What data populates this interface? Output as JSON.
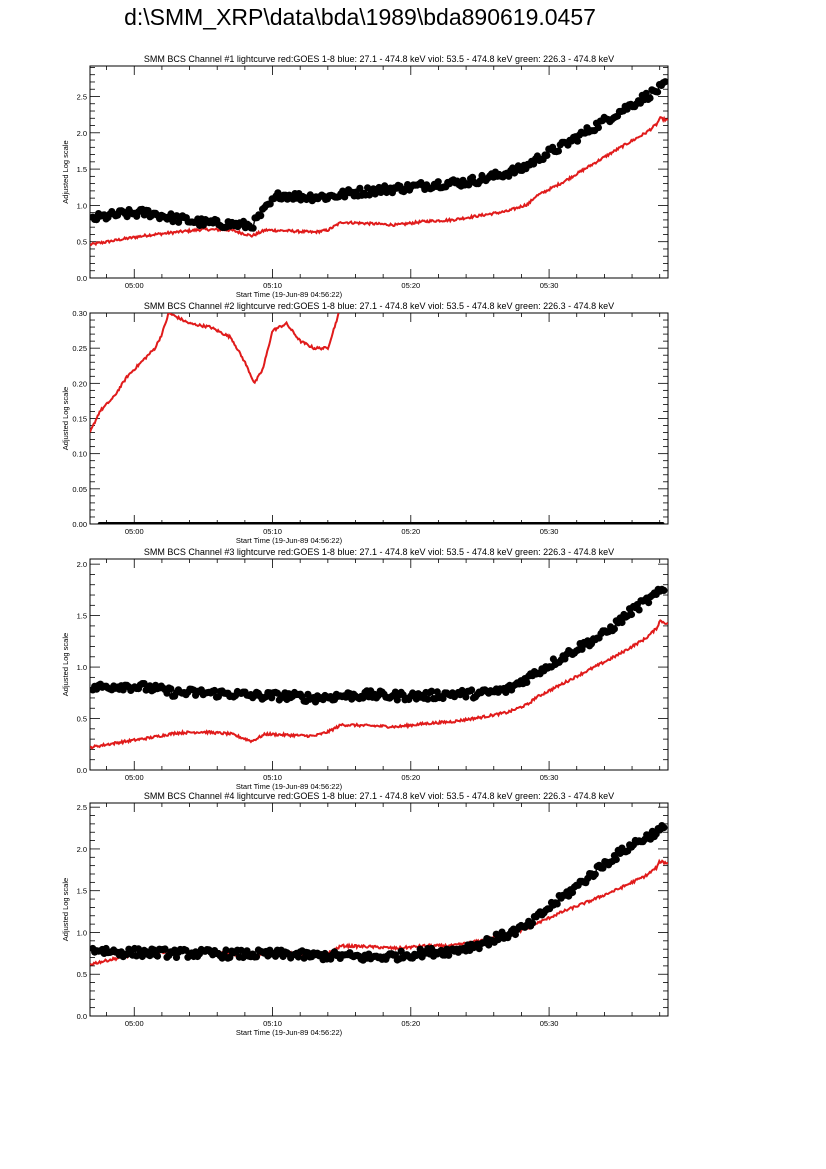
{
  "page": {
    "title": "d:\\SMM_XRP\\data\\bda\\1989\\bda890619.0457"
  },
  "colors": {
    "red": "#e01b1b",
    "black": "#000000"
  },
  "chart_data": [
    {
      "type": "scatter",
      "title": "SMM BCS Channel #1 lightcurve  red:GOES 1-8  blue: 27.1 - 474.8 keV  viol: 53.5 - 474.8 keV  green: 226.3 - 474.8 keV",
      "xlabel": "Start Time (19-Jun-89 04:56:22)",
      "ylabel": "Adjusted Log scale",
      "xlim": [
        -3.2,
        38.6
      ],
      "ylim": [
        0,
        2.92
      ],
      "x_ticks": [
        0,
        10,
        20,
        30
      ],
      "x_tick_labels": [
        "05:00",
        "05:10",
        "05:20",
        "05:30"
      ],
      "y_ticks": [
        0,
        0.5,
        1.0,
        1.5,
        2.0,
        2.5
      ],
      "y_tick_labels": [
        "0.0",
        "0.5",
        "1.0",
        "1.5",
        "2.0",
        "2.5"
      ],
      "series": [
        {
          "color": "#e01b1b",
          "style": "line",
          "x": [
            -3.2,
            -1,
            1,
            3,
            5,
            7,
            8.5,
            9.5,
            11,
            13,
            14,
            15,
            17,
            19,
            21,
            23,
            25,
            27,
            28.5,
            29,
            31,
            33,
            35,
            37,
            37.8,
            38,
            38.6
          ],
          "y": [
            0.46,
            0.53,
            0.59,
            0.63,
            0.67,
            0.66,
            0.58,
            0.66,
            0.65,
            0.63,
            0.66,
            0.77,
            0.75,
            0.73,
            0.78,
            0.8,
            0.86,
            0.92,
            1.02,
            1.12,
            1.32,
            1.55,
            1.78,
            2.0,
            2.12,
            2.2,
            2.17
          ]
        },
        {
          "color": "#000000",
          "style": "markers",
          "x": [
            -3,
            -1,
            1,
            3,
            5,
            7,
            8.5,
            9.5,
            10.5,
            12,
            14,
            16,
            18,
            20,
            22,
            24,
            26,
            28,
            29.5,
            31,
            33,
            35,
            37,
            38.4
          ],
          "y": [
            0.82,
            0.88,
            0.9,
            0.82,
            0.76,
            0.74,
            0.72,
            0.95,
            1.15,
            1.12,
            1.12,
            1.18,
            1.22,
            1.25,
            1.3,
            1.32,
            1.4,
            1.5,
            1.68,
            1.82,
            2.05,
            2.28,
            2.5,
            2.65
          ]
        }
      ]
    },
    {
      "type": "scatter",
      "title": "SMM BCS Channel #2 lightcurve  red:GOES 1-8  blue: 27.1 - 474.8 keV  viol: 53.5 - 474.8 keV  green: 226.3 - 474.8 keV",
      "xlabel": "Start Time (19-Jun-89 04:56:22)",
      "ylabel": "Adjusted Log scale",
      "xlim": [
        -3.2,
        38.6
      ],
      "ylim": [
        0,
        0.3
      ],
      "x_ticks": [
        0,
        10,
        20,
        30
      ],
      "x_tick_labels": [
        "05:00",
        "05:10",
        "05:20",
        "05:30"
      ],
      "y_ticks": [
        0,
        0.05,
        0.1,
        0.15,
        0.2,
        0.25,
        0.3
      ],
      "y_tick_labels": [
        "0.00",
        "0.05",
        "0.10",
        "0.15",
        "0.20",
        "0.25",
        "0.30"
      ],
      "series": [
        {
          "color": "#e01b1b",
          "style": "line",
          "x": [
            -3.2,
            -2.5,
            -1.5,
            -0.5,
            0.5,
            1.5,
            2,
            2.5,
            4,
            5.5,
            7,
            8,
            8.7,
            9.3,
            10,
            11,
            12,
            13,
            14,
            14.8
          ],
          "y": [
            0.13,
            0.16,
            0.18,
            0.21,
            0.23,
            0.25,
            0.27,
            0.3,
            0.285,
            0.28,
            0.265,
            0.23,
            0.2,
            0.22,
            0.275,
            0.285,
            0.26,
            0.25,
            0.25,
            0.3
          ]
        },
        {
          "color": "#000000",
          "style": "markers",
          "x": [
            -2.5,
            38.2
          ],
          "y": [
            0,
            0
          ]
        }
      ]
    },
    {
      "type": "scatter",
      "title": "SMM BCS Channel #3 lightcurve  red:GOES 1-8  blue: 27.1 - 474.8 keV  viol: 53.5 - 474.8 keV  green: 226.3 - 474.8 keV",
      "xlabel": "Start Time (19-Jun-89 04:56:22)",
      "ylabel": "Adjusted Log scale",
      "xlim": [
        -3.2,
        38.6
      ],
      "ylim": [
        0,
        2.05
      ],
      "x_ticks": [
        0,
        10,
        20,
        30
      ],
      "x_tick_labels": [
        "05:00",
        "05:10",
        "05:20",
        "05:30"
      ],
      "y_ticks": [
        0,
        0.5,
        1.0,
        1.5,
        2.0
      ],
      "y_tick_labels": [
        "0.0",
        "0.5",
        "1.0",
        "1.5",
        "2.0"
      ],
      "series": [
        {
          "color": "#e01b1b",
          "style": "line",
          "x": [
            -3.2,
            -1,
            1,
            3,
            5,
            7,
            8.5,
            9.5,
            11,
            13,
            14,
            15,
            17,
            19,
            21,
            23,
            25,
            27,
            28.5,
            29,
            31,
            33,
            35,
            37,
            37.8,
            38,
            38.6
          ],
          "y": [
            0.22,
            0.27,
            0.31,
            0.36,
            0.37,
            0.35,
            0.28,
            0.35,
            0.34,
            0.33,
            0.37,
            0.44,
            0.43,
            0.42,
            0.45,
            0.47,
            0.51,
            0.56,
            0.64,
            0.7,
            0.84,
            0.98,
            1.12,
            1.28,
            1.38,
            1.45,
            1.42
          ]
        },
        {
          "color": "#000000",
          "style": "markers",
          "x": [
            -3,
            -1,
            1,
            3,
            5,
            7,
            9,
            11,
            13,
            15,
            17,
            19,
            21,
            23,
            25,
            27,
            28.5,
            30,
            32,
            34,
            36,
            38.3
          ],
          "y": [
            0.8,
            0.82,
            0.8,
            0.75,
            0.75,
            0.74,
            0.72,
            0.72,
            0.7,
            0.72,
            0.73,
            0.72,
            0.72,
            0.74,
            0.74,
            0.78,
            0.9,
            1.02,
            1.18,
            1.32,
            1.55,
            1.75
          ]
        }
      ]
    },
    {
      "type": "scatter",
      "title": "SMM BCS Channel #4 lightcurve  red:GOES 1-8  blue: 27.1 - 474.8 keV  viol: 53.5 - 474.8 keV  green: 226.3 - 474.8 keV",
      "xlabel": "Start Time (19-Jun-89 04:56:22)",
      "ylabel": "Adjusted Log scale",
      "xlim": [
        -3.2,
        38.6
      ],
      "ylim": [
        0,
        2.55
      ],
      "x_ticks": [
        0,
        10,
        20,
        30
      ],
      "x_tick_labels": [
        "05:00",
        "05:10",
        "05:20",
        "05:30"
      ],
      "y_ticks": [
        0,
        0.5,
        1.0,
        1.5,
        2.0,
        2.5
      ],
      "y_tick_labels": [
        "0.0",
        "0.5",
        "1.0",
        "1.5",
        "2.0",
        "2.5"
      ],
      "series": [
        {
          "color": "#e01b1b",
          "style": "line",
          "x": [
            -3.2,
            -1,
            1,
            3,
            5,
            7,
            8.5,
            9.5,
            11,
            13,
            14,
            15,
            17,
            19,
            21,
            23,
            25,
            27,
            28.5,
            29,
            31,
            33,
            35,
            37,
            37.8,
            38,
            38.6
          ],
          "y": [
            0.62,
            0.7,
            0.75,
            0.78,
            0.77,
            0.74,
            0.7,
            0.77,
            0.75,
            0.74,
            0.75,
            0.84,
            0.83,
            0.81,
            0.84,
            0.84,
            0.9,
            0.97,
            1.05,
            1.1,
            1.25,
            1.38,
            1.52,
            1.68,
            1.78,
            1.85,
            1.83
          ]
        },
        {
          "color": "#000000",
          "style": "markers",
          "x": [
            -3,
            -1,
            1,
            3,
            5,
            7,
            9,
            11,
            13,
            15,
            17,
            19,
            21,
            23,
            25,
            27,
            28.5,
            30,
            32,
            34,
            36,
            38.3
          ],
          "y": [
            0.8,
            0.76,
            0.76,
            0.75,
            0.75,
            0.74,
            0.74,
            0.74,
            0.72,
            0.72,
            0.7,
            0.72,
            0.76,
            0.78,
            0.86,
            0.98,
            1.08,
            1.3,
            1.55,
            1.82,
            2.05,
            2.25
          ]
        }
      ]
    }
  ]
}
